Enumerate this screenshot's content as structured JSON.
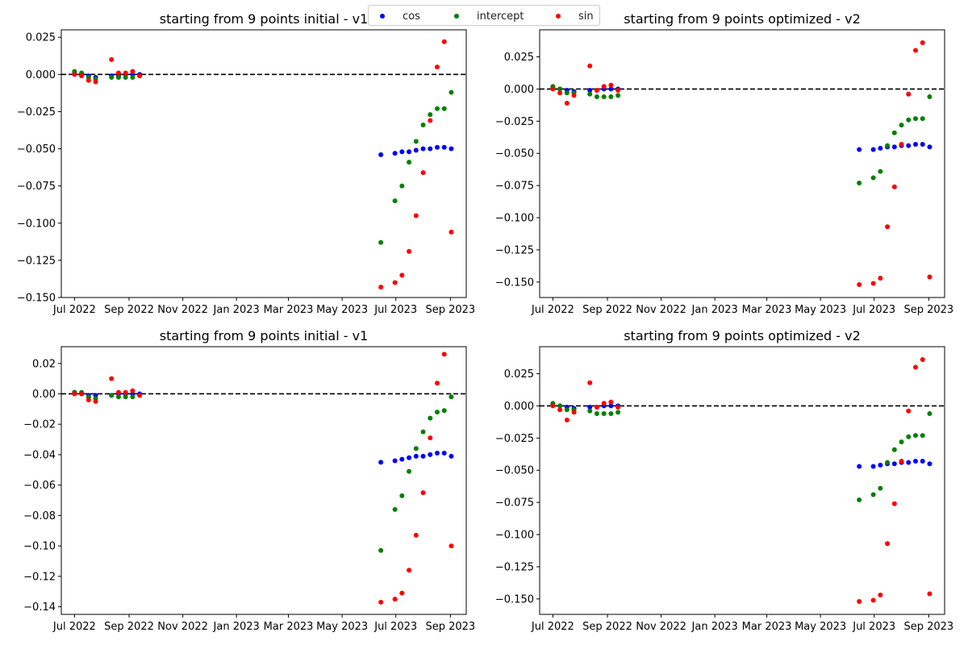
{
  "legend": {
    "entries": [
      {
        "name": "cos",
        "color": "#0000ff"
      },
      {
        "name": "intercept",
        "color": "#008000"
      },
      {
        "name": "sin",
        "color": "#ff0000"
      }
    ]
  },
  "chart_data": [
    {
      "type": "scatter",
      "title": "starting from 9 points initial - v1",
      "xlabel": "",
      "ylabel": "",
      "xlim": [
        "2022-06-16",
        "2023-09-19"
      ],
      "ylim": [
        -0.15,
        0.03
      ],
      "yticks": [
        0.025,
        0.0,
        -0.025,
        -0.05,
        -0.075,
        -0.1,
        -0.125,
        -0.15
      ],
      "ytick_labels": [
        "0.025",
        "0.000",
        "−0.025",
        "−0.050",
        "−0.075",
        "−0.100",
        "−0.125",
        "−0.150"
      ],
      "xticks": [
        "2022-07-01",
        "2022-09-01",
        "2022-11-01",
        "2023-01-01",
        "2023-03-01",
        "2023-05-01",
        "2023-07-01",
        "2023-09-01"
      ],
      "xtick_labels": [
        "Jul 2022",
        "Sep 2022",
        "Nov 2022",
        "Jan 2023",
        "Mar 2023",
        "May 2023",
        "Jul 2023",
        "Sep 2023"
      ],
      "reference_line": {
        "y": 0,
        "style": "dashed",
        "color": "#000000"
      },
      "x": [
        "2022-07-01",
        "2022-07-09",
        "2022-07-17",
        "2022-07-25",
        "2022-08-12",
        "2022-08-20",
        "2022-08-28",
        "2022-09-05",
        "2022-09-13",
        "2023-06-14",
        "2023-06-30",
        "2023-07-08",
        "2023-07-16",
        "2023-07-24",
        "2023-08-01",
        "2023-08-09",
        "2023-08-17",
        "2023-08-25",
        "2023-09-02"
      ],
      "series": [
        {
          "name": "cos",
          "color": "#0000ff",
          "values": [
            0.001,
            0.0,
            -0.001,
            -0.002,
            -0.001,
            -0.001,
            0.0,
            0.0,
            0.0,
            -0.054,
            -0.053,
            -0.052,
            -0.052,
            -0.051,
            -0.05,
            -0.05,
            -0.049,
            -0.049,
            -0.05
          ]
        },
        {
          "name": "intercept",
          "color": "#008000",
          "values": [
            0.002,
            0.001,
            -0.002,
            -0.003,
            -0.002,
            -0.002,
            -0.002,
            -0.002,
            -0.001,
            -0.113,
            -0.085,
            -0.075,
            -0.059,
            -0.045,
            -0.034,
            -0.027,
            -0.023,
            -0.023,
            -0.012
          ]
        },
        {
          "name": "sin",
          "color": "#ff0000",
          "values": [
            0.0,
            -0.001,
            -0.004,
            -0.005,
            0.01,
            0.001,
            0.001,
            0.002,
            -0.001,
            -0.143,
            -0.14,
            -0.135,
            -0.119,
            -0.095,
            -0.066,
            -0.031,
            0.005,
            0.022,
            -0.106
          ]
        }
      ]
    },
    {
      "type": "scatter",
      "title": "starting from 9 points optimized - v2",
      "xlabel": "",
      "ylabel": "",
      "xlim": [
        "2022-06-16",
        "2023-09-19"
      ],
      "ylim": [
        -0.162,
        0.046
      ],
      "yticks": [
        0.025,
        0.0,
        -0.025,
        -0.05,
        -0.075,
        -0.1,
        -0.125,
        -0.15
      ],
      "ytick_labels": [
        "0.025",
        "0.000",
        "−0.025",
        "−0.050",
        "−0.075",
        "−0.100",
        "−0.125",
        "−0.150"
      ],
      "xticks": [
        "2022-07-01",
        "2022-09-01",
        "2022-11-01",
        "2023-01-01",
        "2023-03-01",
        "2023-05-01",
        "2023-07-01",
        "2023-09-01"
      ],
      "xtick_labels": [
        "Jul 2022",
        "Sep 2022",
        "Nov 2022",
        "Jan 2023",
        "Mar 2023",
        "May 2023",
        "Jul 2023",
        "Sep 2023"
      ],
      "reference_line": {
        "y": 0,
        "style": "dashed",
        "color": "#000000"
      },
      "x": [
        "2022-07-01",
        "2022-07-09",
        "2022-07-17",
        "2022-07-25",
        "2022-08-12",
        "2022-08-20",
        "2022-08-28",
        "2022-09-05",
        "2022-09-13",
        "2023-06-14",
        "2023-06-30",
        "2023-07-08",
        "2023-07-16",
        "2023-07-24",
        "2023-08-01",
        "2023-08-09",
        "2023-08-17",
        "2023-08-25",
        "2023-09-02"
      ],
      "series": [
        {
          "name": "cos",
          "color": "#0000ff",
          "values": [
            0.001,
            0.0,
            -0.001,
            -0.002,
            -0.001,
            -0.001,
            0.0,
            0.0,
            0.0,
            -0.047,
            -0.047,
            -0.046,
            -0.045,
            -0.045,
            -0.044,
            -0.044,
            -0.043,
            -0.043,
            -0.045
          ]
        },
        {
          "name": "intercept",
          "color": "#008000",
          "values": [
            0.002,
            0.0,
            -0.003,
            -0.003,
            -0.004,
            -0.006,
            -0.006,
            -0.006,
            -0.005,
            -0.073,
            -0.069,
            -0.064,
            -0.044,
            -0.034,
            -0.028,
            -0.024,
            -0.023,
            -0.023,
            -0.006
          ]
        },
        {
          "name": "sin",
          "color": "#ff0000",
          "values": [
            0.0,
            -0.003,
            -0.011,
            -0.005,
            0.018,
            -0.001,
            0.002,
            0.003,
            -0.001,
            -0.152,
            -0.151,
            -0.147,
            -0.107,
            -0.076,
            -0.043,
            -0.004,
            0.03,
            0.036,
            -0.146
          ]
        }
      ]
    },
    {
      "type": "scatter",
      "title": "starting from 9 points initial - v1",
      "xlabel": "",
      "ylabel": "",
      "xlim": [
        "2022-06-16",
        "2023-09-19"
      ],
      "ylim": [
        -0.145,
        0.031
      ],
      "yticks": [
        0.02,
        0.0,
        -0.02,
        -0.04,
        -0.06,
        -0.08,
        -0.1,
        -0.12,
        -0.14
      ],
      "ytick_labels": [
        "0.02",
        "0.00",
        "−0.02",
        "−0.04",
        "−0.06",
        "−0.08",
        "−0.10",
        "−0.12",
        "−0.14"
      ],
      "xticks": [
        "2022-07-01",
        "2022-09-01",
        "2022-11-01",
        "2023-01-01",
        "2023-03-01",
        "2023-05-01",
        "2023-07-01",
        "2023-09-01"
      ],
      "xtick_labels": [
        "Jul 2022",
        "Sep 2022",
        "Nov 2022",
        "Jan 2023",
        "Mar 2023",
        "May 2023",
        "Jul 2023",
        "Sep 2023"
      ],
      "reference_line": {
        "y": 0,
        "style": "dashed",
        "color": "#000000"
      },
      "x": [
        "2022-07-01",
        "2022-07-09",
        "2022-07-17",
        "2022-07-25",
        "2022-08-12",
        "2022-08-20",
        "2022-08-28",
        "2022-09-05",
        "2022-09-13",
        "2023-06-14",
        "2023-06-30",
        "2023-07-08",
        "2023-07-16",
        "2023-07-24",
        "2023-08-01",
        "2023-08-09",
        "2023-08-17",
        "2023-08-25",
        "2023-09-02"
      ],
      "series": [
        {
          "name": "cos",
          "color": "#0000ff",
          "values": [
            0.001,
            0.0,
            -0.001,
            -0.001,
            -0.001,
            0.0,
            0.0,
            0.0,
            0.0,
            -0.045,
            -0.044,
            -0.043,
            -0.042,
            -0.041,
            -0.041,
            -0.04,
            -0.039,
            -0.039,
            -0.041
          ]
        },
        {
          "name": "intercept",
          "color": "#008000",
          "values": [
            0.001,
            0.001,
            -0.002,
            -0.003,
            -0.001,
            -0.002,
            -0.002,
            -0.002,
            -0.001,
            -0.103,
            -0.076,
            -0.067,
            -0.051,
            -0.036,
            -0.025,
            -0.016,
            -0.012,
            -0.011,
            -0.002
          ]
        },
        {
          "name": "sin",
          "color": "#ff0000",
          "values": [
            0.0,
            0.0,
            -0.004,
            -0.005,
            0.01,
            0.001,
            0.001,
            0.002,
            -0.001,
            -0.137,
            -0.135,
            -0.131,
            -0.116,
            -0.093,
            -0.065,
            -0.029,
            0.007,
            0.026,
            -0.1
          ]
        }
      ]
    },
    {
      "type": "scatter",
      "title": "starting from 9 points optimized - v2",
      "xlabel": "",
      "ylabel": "",
      "xlim": [
        "2022-06-16",
        "2023-09-19"
      ],
      "ylim": [
        -0.162,
        0.046
      ],
      "yticks": [
        0.025,
        0.0,
        -0.025,
        -0.05,
        -0.075,
        -0.1,
        -0.125,
        -0.15
      ],
      "ytick_labels": [
        "0.025",
        "0.000",
        "−0.025",
        "−0.050",
        "−0.075",
        "−0.100",
        "−0.125",
        "−0.150"
      ],
      "xticks": [
        "2022-07-01",
        "2022-09-01",
        "2022-11-01",
        "2023-01-01",
        "2023-03-01",
        "2023-05-01",
        "2023-07-01",
        "2023-09-01"
      ],
      "xtick_labels": [
        "Jul 2022",
        "Sep 2022",
        "Nov 2022",
        "Jan 2023",
        "Mar 2023",
        "May 2023",
        "Jul 2023",
        "Sep 2023"
      ],
      "reference_line": {
        "y": 0,
        "style": "dashed",
        "color": "#000000"
      },
      "x": [
        "2022-07-01",
        "2022-07-09",
        "2022-07-17",
        "2022-07-25",
        "2022-08-12",
        "2022-08-20",
        "2022-08-28",
        "2022-09-05",
        "2022-09-13",
        "2023-06-14",
        "2023-06-30",
        "2023-07-08",
        "2023-07-16",
        "2023-07-24",
        "2023-08-01",
        "2023-08-09",
        "2023-08-17",
        "2023-08-25",
        "2023-09-02"
      ],
      "series": [
        {
          "name": "cos",
          "color": "#0000ff",
          "values": [
            0.001,
            0.0,
            -0.001,
            -0.002,
            -0.001,
            -0.001,
            0.0,
            0.0,
            0.0,
            -0.047,
            -0.047,
            -0.046,
            -0.045,
            -0.045,
            -0.044,
            -0.044,
            -0.043,
            -0.043,
            -0.045
          ]
        },
        {
          "name": "intercept",
          "color": "#008000",
          "values": [
            0.002,
            0.0,
            -0.003,
            -0.003,
            -0.004,
            -0.006,
            -0.006,
            -0.006,
            -0.005,
            -0.073,
            -0.069,
            -0.064,
            -0.044,
            -0.034,
            -0.028,
            -0.024,
            -0.023,
            -0.023,
            -0.006
          ]
        },
        {
          "name": "sin",
          "color": "#ff0000",
          "values": [
            0.0,
            -0.003,
            -0.011,
            -0.005,
            0.018,
            -0.001,
            0.002,
            0.003,
            -0.001,
            -0.152,
            -0.151,
            -0.147,
            -0.107,
            -0.076,
            -0.043,
            -0.004,
            0.03,
            0.036,
            -0.146
          ]
        }
      ]
    }
  ]
}
